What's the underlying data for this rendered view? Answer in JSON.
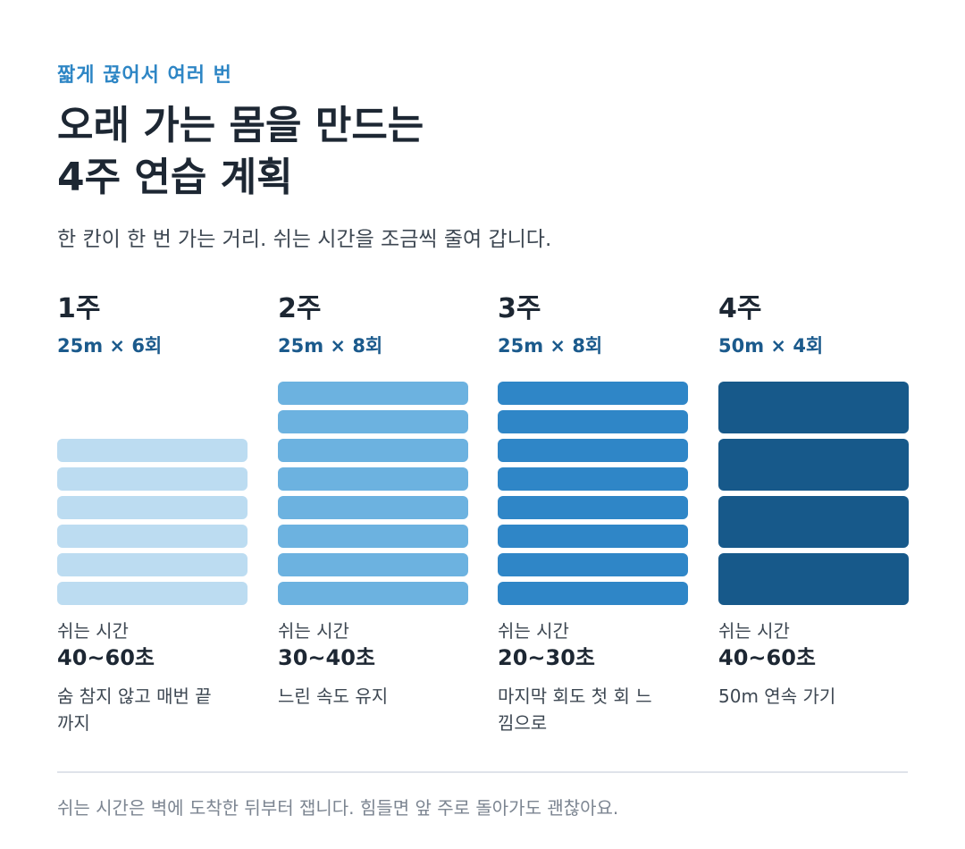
{
  "header": {
    "eyebrow": "짧게 끊어서 여러 번",
    "title_line1": "오래 가는 몸을 만드는",
    "title_line2": "4주 연습 계획",
    "subtitle": "한 칸이 한 번 가는 거리. 쉬는 시간을 조금씩 줄여 갑니다."
  },
  "weeks": [
    {
      "label": "1주",
      "spec": "25m × 6회",
      "reps": 6,
      "bar_color": "#bcdcf1",
      "rest_label": "쉬는 시간",
      "rest_value": "40~60초",
      "note": "숨 참지 않고 매번 끝까지"
    },
    {
      "label": "2주",
      "spec": "25m × 8회",
      "reps": 8,
      "bar_color": "#6cb2e0",
      "rest_label": "쉬는 시간",
      "rest_value": "30~40초",
      "note": "느린 속도 유지"
    },
    {
      "label": "3주",
      "spec": "25m × 8회",
      "reps": 8,
      "bar_color": "#2f86c7",
      "rest_label": "쉬는 시간",
      "rest_value": "20~30초",
      "note": "마지막 회도 첫 회 느낌으로"
    },
    {
      "label": "4주",
      "spec": "50m × 4회",
      "reps": 4,
      "bar_color": "#17598a",
      "rest_label": "쉬는 시간",
      "rest_value": "40~60초",
      "note": "50m 연속 가기"
    }
  ],
  "footer": {
    "note": "쉬는 시간은 벽에 도착한 뒤부터 잽니다. 힘들면 앞 주로 돌아가도 괜찮아요."
  }
}
